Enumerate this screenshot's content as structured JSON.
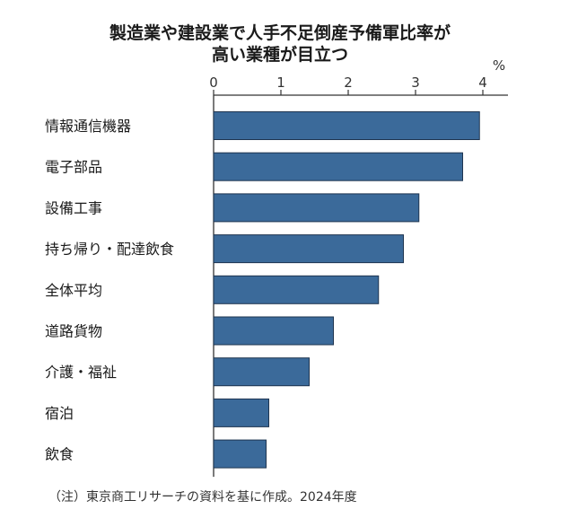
{
  "chart_data": {
    "type": "bar",
    "orientation": "horizontal",
    "title_lines": [
      "製造業や建設業で人手不足倒産予備軍比率が",
      "高い業種が目立つ"
    ],
    "unit": "%",
    "categories": [
      "情報通信機器",
      "電子部品",
      "設備工事",
      "持ち帰り・配達飲食",
      "全体平均",
      "道路貨物",
      "介護・福祉",
      "宿泊",
      "飲食"
    ],
    "values": [
      3.95,
      3.7,
      3.05,
      2.82,
      2.45,
      1.78,
      1.42,
      0.82,
      0.78
    ],
    "xlim": [
      0,
      4
    ],
    "ticks": [
      0,
      1,
      2,
      3,
      4
    ],
    "grid": false,
    "bar_color": "#3b6a9a",
    "bar_edge_color": "#1f3550",
    "axis_color": "#333333",
    "note": "（注）東京商工リサーチの資料を基に作成。2024年度"
  }
}
